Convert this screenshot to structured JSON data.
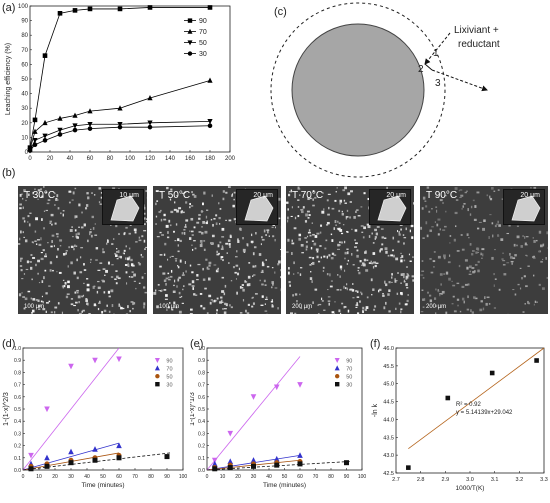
{
  "panel_labels": {
    "a": "(a)",
    "b": "(b)",
    "c": "(c)",
    "d": "(d)",
    "e": "(e)",
    "f": "(f)"
  },
  "diagram_c": {
    "lixiviant_line1": "Lixiviant +",
    "lixiviant_line2": "reductant",
    "marker_1": "1",
    "marker_2": "2",
    "marker_3": "3",
    "core_color": "#a6a6a6"
  },
  "sem_images": [
    {
      "label": "T 30°C",
      "inset_scale": "10 µm",
      "scale": "100 µm"
    },
    {
      "label": "T 50°C",
      "inset_scale": "20 µm",
      "scale": "100 µm"
    },
    {
      "label": "T 70°C",
      "inset_scale": "20 µm",
      "scale": "200 µm"
    },
    {
      "label": "T 90°C",
      "inset_scale": "20 µm",
      "scale": "200 µm"
    }
  ],
  "chart_data": [
    {
      "id": "a",
      "type": "line",
      "title": "",
      "xlabel": "",
      "ylabel": "Leaching efficiency (%)",
      "xlim": [
        0,
        200
      ],
      "ylim": [
        0,
        100
      ],
      "xticks": [
        "0",
        "20",
        "40",
        "60",
        "80",
        "100",
        "120",
        "140",
        "160",
        "180",
        "200"
      ],
      "yticks": [
        "0",
        "10",
        "20",
        "30",
        "40",
        "50",
        "60",
        "70",
        "80",
        "90",
        "100"
      ],
      "legend_position": "top-right",
      "series": [
        {
          "name": "90",
          "color": "#000000",
          "marker": "square",
          "x": [
            0,
            5,
            15,
            30,
            45,
            60,
            90,
            120,
            180
          ],
          "y": [
            3,
            22,
            66,
            95,
            97,
            98,
            98,
            99,
            99
          ]
        },
        {
          "name": "70",
          "color": "#000000",
          "marker": "triangle",
          "x": [
            0,
            5,
            15,
            30,
            45,
            60,
            90,
            120,
            180
          ],
          "y": [
            2,
            14,
            20,
            23,
            25,
            28,
            30,
            37,
            49
          ]
        },
        {
          "name": "50",
          "color": "#000000",
          "marker": "triangle-down",
          "x": [
            0,
            5,
            15,
            30,
            45,
            60,
            90,
            120,
            180
          ],
          "y": [
            1,
            8,
            11,
            15,
            18,
            19,
            19,
            20,
            21
          ]
        },
        {
          "name": "30",
          "color": "#000000",
          "marker": "circle",
          "x": [
            0,
            5,
            15,
            30,
            45,
            60,
            90,
            120,
            180
          ],
          "y": [
            1,
            5,
            8,
            12,
            15,
            16,
            17,
            17,
            18
          ]
        }
      ]
    },
    {
      "id": "d",
      "type": "scatter",
      "title": "",
      "xlabel": "Time (minutes)",
      "ylabel": "1-(1-x)^2/3",
      "xlim": [
        0,
        100
      ],
      "ylim": [
        0,
        1.0
      ],
      "xticks": [
        "0",
        "10",
        "20",
        "30",
        "40",
        "50",
        "60",
        "70",
        "80",
        "90",
        "100"
      ],
      "yticks": [
        "0.0",
        "0.1",
        "0.2",
        "0.3",
        "0.4",
        "0.5",
        "0.6",
        "0.7",
        "0.8",
        "0.9",
        "1.0"
      ],
      "legend_position": "top-right",
      "series": [
        {
          "name": "90",
          "color": "#cc66ee",
          "marker": "triangle-down",
          "x": [
            5,
            15,
            30,
            45,
            60
          ],
          "y": [
            0.12,
            0.5,
            0.85,
            0.9,
            0.91
          ],
          "fit": [
            [
              0,
              0
            ],
            [
              60,
              1.0
            ]
          ]
        },
        {
          "name": "70",
          "color": "#3333cc",
          "marker": "triangle",
          "x": [
            5,
            15,
            30,
            45,
            60
          ],
          "y": [
            0.05,
            0.1,
            0.15,
            0.17,
            0.2
          ],
          "fit": [
            [
              0,
              0
            ],
            [
              60,
              0.22
            ]
          ]
        },
        {
          "name": "50",
          "color": "#aa5511",
          "marker": "circle",
          "x": [
            5,
            15,
            30,
            45,
            60
          ],
          "y": [
            0.03,
            0.05,
            0.08,
            0.1,
            0.12
          ],
          "fit": [
            [
              0,
              0
            ],
            [
              60,
              0.14
            ]
          ]
        },
        {
          "name": "30",
          "color": "#111111",
          "marker": "square",
          "x": [
            5,
            15,
            30,
            45,
            60,
            90
          ],
          "y": [
            0.01,
            0.03,
            0.06,
            0.08,
            0.1,
            0.11
          ],
          "fit": [
            [
              0,
              0
            ],
            [
              92,
              0.14
            ]
          ]
        }
      ]
    },
    {
      "id": "e",
      "type": "scatter",
      "title": "",
      "xlabel": "Time (minutes)",
      "ylabel": "1-(1-x)^1/3",
      "xlim": [
        0,
        100
      ],
      "ylim": [
        0,
        1.0
      ],
      "xticks": [
        "0",
        "10",
        "20",
        "30",
        "40",
        "50",
        "60",
        "70",
        "80",
        "90",
        "100"
      ],
      "yticks": [
        "0.0",
        "0.1",
        "0.2",
        "0.3",
        "0.4",
        "0.5",
        "0.6",
        "0.7",
        "0.8",
        "0.9",
        "1.0"
      ],
      "legend_position": "top-right",
      "series": [
        {
          "name": "90",
          "color": "#cc66ee",
          "marker": "triangle-down",
          "x": [
            5,
            15,
            30,
            45,
            60
          ],
          "y": [
            0.08,
            0.3,
            0.6,
            0.68,
            0.7
          ],
          "fit": [
            [
              0,
              0
            ],
            [
              60,
              0.93
            ]
          ]
        },
        {
          "name": "70",
          "color": "#3333cc",
          "marker": "triangle",
          "x": [
            5,
            15,
            30,
            45,
            60
          ],
          "y": [
            0.05,
            0.07,
            0.08,
            0.09,
            0.12
          ],
          "fit": [
            [
              0,
              0
            ],
            [
              60,
              0.12
            ]
          ]
        },
        {
          "name": "50",
          "color": "#aa5511",
          "marker": "circle",
          "x": [
            5,
            15,
            30,
            45,
            60
          ],
          "y": [
            0.02,
            0.04,
            0.05,
            0.06,
            0.07
          ],
          "fit": [
            [
              0,
              0
            ],
            [
              60,
              0.08
            ]
          ]
        },
        {
          "name": "30",
          "color": "#111111",
          "marker": "square",
          "x": [
            5,
            15,
            30,
            45,
            60,
            90
          ],
          "y": [
            0.01,
            0.02,
            0.03,
            0.04,
            0.05,
            0.06
          ],
          "fit": [
            [
              0,
              0
            ],
            [
              92,
              0.07
            ]
          ]
        }
      ]
    },
    {
      "id": "f",
      "type": "scatter",
      "title": "",
      "xlabel": "1000/T(K)",
      "ylabel": "-ln k",
      "xlim": [
        2.7,
        3.3
      ],
      "ylim": [
        42.5,
        46.0
      ],
      "xticks": [
        "2.7",
        "2.8",
        "2.9",
        "3.0",
        "3.1",
        "3.2",
        "3.3"
      ],
      "yticks": [
        "42.5",
        "43.0",
        "43.5",
        "44.0",
        "44.5",
        "45.0",
        "45.5",
        "46.0"
      ],
      "annotations": [
        "R² = 0.92",
        "y = 5.14139x+29.042"
      ],
      "series": [
        {
          "name": "",
          "color": "#111111",
          "marker": "square",
          "x": [
            2.75,
            2.91,
            3.09,
            3.27
          ],
          "y": [
            42.65,
            44.6,
            45.3,
            45.65
          ],
          "fit": [
            [
              2.75,
              43.18
            ],
            [
              3.3,
              46.0
            ]
          ],
          "fit_color": "#b5651d"
        }
      ]
    }
  ]
}
